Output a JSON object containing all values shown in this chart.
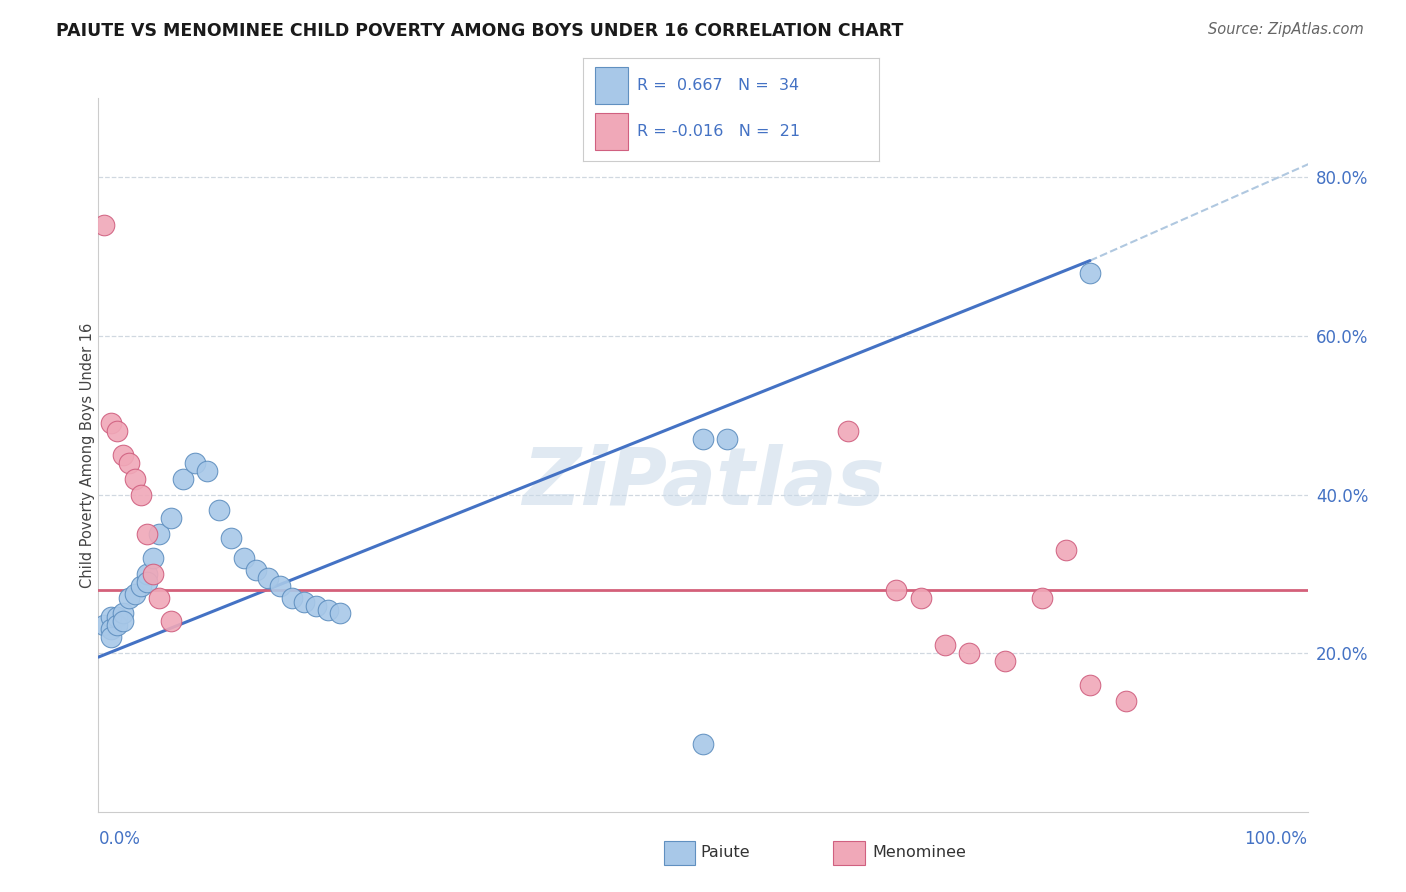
{
  "title": "PAIUTE VS MENOMINEE CHILD POVERTY AMONG BOYS UNDER 16 CORRELATION CHART",
  "source": "Source: ZipAtlas.com",
  "ylabel": "Child Poverty Among Boys Under 16",
  "legend_blue_r": "0.667",
  "legend_blue_n": "34",
  "legend_pink_r": "-0.016",
  "legend_pink_n": "21",
  "legend_label_blue": "Paiute",
  "legend_label_pink": "Menominee",
  "blue_scatter_color": "#a8c8e8",
  "blue_scatter_edge": "#6090c0",
  "pink_scatter_color": "#f0a8b8",
  "pink_scatter_edge": "#d06080",
  "blue_line_color": "#4472c4",
  "pink_line_color": "#d4607a",
  "dashed_line_color": "#b0c8e0",
  "grid_color": "#d0d8e0",
  "ytick_color": "#4472c4",
  "xtick_color": "#4472c4",
  "watermark": "ZiPatlas",
  "xlim": [
    0.0,
    1.0
  ],
  "ylim": [
    0.0,
    0.9
  ],
  "ytick_values": [
    0.2,
    0.4,
    0.6,
    0.8
  ],
  "paiute_x": [
    0.005,
    0.01,
    0.01,
    0.01,
    0.015,
    0.015,
    0.02,
    0.02,
    0.025,
    0.03,
    0.035,
    0.04,
    0.04,
    0.045,
    0.05,
    0.06,
    0.07,
    0.08,
    0.09,
    0.1,
    0.11,
    0.12,
    0.13,
    0.14,
    0.15,
    0.16,
    0.17,
    0.18,
    0.19,
    0.2,
    0.5,
    0.52,
    0.82,
    0.5
  ],
  "paiute_y": [
    0.235,
    0.245,
    0.23,
    0.22,
    0.245,
    0.235,
    0.25,
    0.24,
    0.27,
    0.275,
    0.285,
    0.3,
    0.29,
    0.32,
    0.35,
    0.37,
    0.42,
    0.44,
    0.43,
    0.38,
    0.345,
    0.32,
    0.305,
    0.295,
    0.285,
    0.27,
    0.265,
    0.26,
    0.255,
    0.25,
    0.47,
    0.47,
    0.68,
    0.085
  ],
  "menominee_x": [
    0.005,
    0.01,
    0.015,
    0.02,
    0.025,
    0.03,
    0.035,
    0.04,
    0.045,
    0.05,
    0.06,
    0.62,
    0.66,
    0.68,
    0.7,
    0.72,
    0.75,
    0.78,
    0.8,
    0.82,
    0.85
  ],
  "menominee_y": [
    0.74,
    0.49,
    0.48,
    0.45,
    0.44,
    0.42,
    0.4,
    0.35,
    0.3,
    0.27,
    0.24,
    0.48,
    0.28,
    0.27,
    0.21,
    0.2,
    0.19,
    0.27,
    0.33,
    0.16,
    0.14
  ],
  "blue_line_x": [
    0.0,
    0.82
  ],
  "blue_line_y": [
    0.195,
    0.695
  ],
  "pink_line_y": 0.28,
  "dashed_line_x": [
    0.82,
    1.05
  ],
  "dashed_line_y": [
    0.695,
    0.85
  ]
}
